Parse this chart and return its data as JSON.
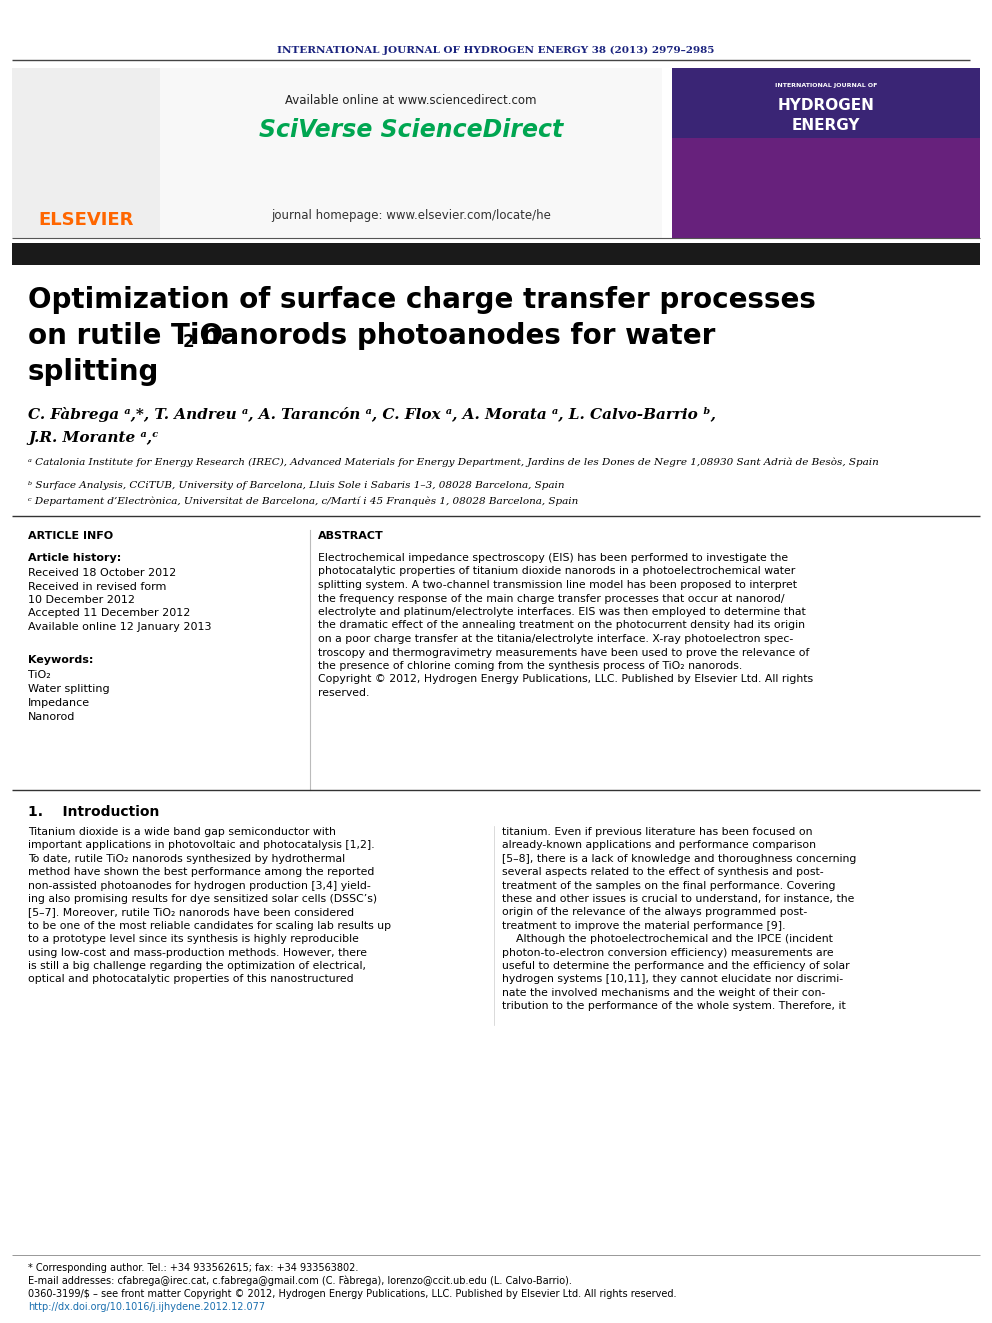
{
  "journal_header": "INTERNATIONAL JOURNAL OF HYDROGEN ENERGY 38 (2013) 2979–2985",
  "journal_header_color": "#1a237e",
  "available_online": "Available online at www.sciencedirect.com",
  "sciverse_text": "SciVerse ScienceDirect",
  "sciverse_color": "#00a651",
  "journal_homepage": "journal homepage: www.elsevier.com/locate/he",
  "black_bar_color": "#1a1a1a",
  "title_line1": "Optimization of surface charge transfer processes",
  "title_line2_pre": "on rutile TiO",
  "title_line2_sub": "2",
  "title_line2_post": " nanorods photoanodes for water",
  "title_line3": "splitting",
  "title_color": "#000000",
  "authors_full": "C. Fàbrega ᵃ,*, T. Andreu ᵃ, A. Tarancón ᵃ, C. Flox ᵃ, A. Morata ᵃ, L. Calvo-Barrio ᵇ,",
  "authors_line2": "J.R. Morante ᵃ,ᶜ",
  "affil_a": "ᵃ Catalonia Institute for Energy Research (IREC), Advanced Materials for Energy Department, Jardins de les Dones de Negre 1,08930 Sant Adrià de Besòs, Spain",
  "affil_b": "ᵇ Surface Analysis, CCiTUB, University of Barcelona, Lluis Sole i Sabaris 1–3, 08028 Barcelona, Spain",
  "affil_c": "ᶜ Departament d’Electrònica, Universitat de Barcelona, c/Martí i 45 Franquès 1, 08028 Barcelona, Spain",
  "article_info_label": "ARTICLE INFO",
  "abstract_label": "ABSTRACT",
  "article_history_label": "Article history:",
  "received1": "Received 18 October 2012",
  "received2": "Received in revised form",
  "received2b": "10 December 2012",
  "accepted": "Accepted 11 December 2012",
  "available": "Available online 12 January 2013",
  "keywords_label": "Keywords:",
  "keyword1": "TiO₂",
  "keyword2": "Water splitting",
  "keyword3": "Impedance",
  "keyword4": "Nanorod",
  "abstract_lines": [
    "Electrochemical impedance spectroscopy (EIS) has been performed to investigate the",
    "photocatalytic properties of titanium dioxide nanorods in a photoelectrochemical water",
    "splitting system. A two-channel transmission line model has been proposed to interpret",
    "the frequency response of the main charge transfer processes that occur at nanorod/",
    "electrolyte and platinum/electrolyte interfaces. EIS was then employed to determine that",
    "the dramatic effect of the annealing treatment on the photocurrent density had its origin",
    "on a poor charge transfer at the titania/electrolyte interface. X-ray photoelectron spec-",
    "troscopy and thermogravimetry measurements have been used to prove the relevance of",
    "the presence of chlorine coming from the synthesis process of TiO₂ nanorods.",
    "Copyright © 2012, Hydrogen Energy Publications, LLC. Published by Elsevier Ltd. All rights",
    "reserved."
  ],
  "intro_heading": "1.    Introduction",
  "col1_lines": [
    "Titanium dioxide is a wide band gap semiconductor with",
    "important applications in photovoltaic and photocatalysis [1,2].",
    "To date, rutile TiO₂ nanorods synthesized by hydrothermal",
    "method have shown the best performance among the reported",
    "non-assisted photoanodes for hydrogen production [3,4] yield-",
    "ing also promising results for dye sensitized solar cells (DSSC’s)",
    "[5–7]. Moreover, rutile TiO₂ nanorods have been considered",
    "to be one of the most reliable candidates for scaling lab results up",
    "to a prototype level since its synthesis is highly reproducible",
    "using low-cost and mass-production methods. However, there",
    "is still a big challenge regarding the optimization of electrical,",
    "optical and photocatalytic properties of this nanostructured"
  ],
  "col2_lines": [
    "titanium. Even if previous literature has been focused on",
    "already-known applications and performance comparison",
    "[5–8], there is a lack of knowledge and thoroughness concerning",
    "several aspects related to the effect of synthesis and post-",
    "treatment of the samples on the final performance. Covering",
    "these and other issues is crucial to understand, for instance, the",
    "origin of the relevance of the always programmed post-",
    "treatment to improve the material performance [9].",
    "    Although the photoelectrochemical and the IPCE (incident",
    "photon-to-electron conversion efficiency) measurements are",
    "useful to determine the performance and the efficiency of solar",
    "hydrogen systems [10,11], they cannot elucidate nor discrimi-",
    "nate the involved mechanisms and the weight of their con-",
    "tribution to the performance of the whole system. Therefore, it"
  ],
  "footer_corresponding": "* Corresponding author. Tel.: +34 933562615; fax: +34 933563802.",
  "footer_email": "E-mail addresses: cfabrega@irec.cat, c.fabrega@gmail.com (C. Fàbrega), lorenzo@ccit.ub.edu (L. Calvo-Barrio).",
  "footer_issn": "0360-3199/$ – see front matter Copyright © 2012, Hydrogen Energy Publications, LLC. Published by Elsevier Ltd. All rights reserved.",
  "footer_doi": "http://dx.doi.org/10.1016/j.ijhydene.2012.12.077",
  "elsevier_color": "#ff6600",
  "bg_color": "#ffffff"
}
